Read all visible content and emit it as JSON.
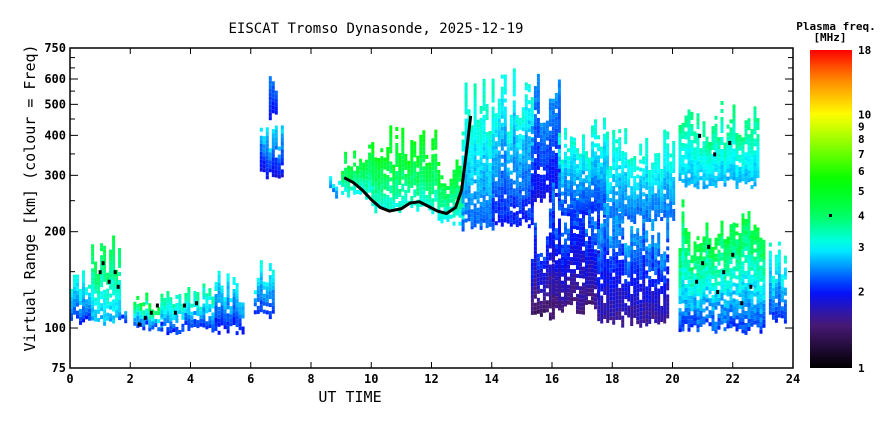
{
  "chart_data": {
    "type": "heatmap",
    "title": "EISCAT Tromso Dynasonde, 2025-12-19",
    "xlabel": "UT TIME",
    "ylabel": "Virtual Range [km] (colour = Freq)",
    "xlim": [
      0,
      24
    ],
    "ylim": [
      75,
      750
    ],
    "yscale": "log",
    "x_ticks": [
      "0",
      "2",
      "4",
      "6",
      "8",
      "10",
      "12",
      "14",
      "16",
      "18",
      "20",
      "22",
      "24"
    ],
    "x_tick_values": [
      0,
      2,
      4,
      6,
      8,
      10,
      12,
      14,
      16,
      18,
      20,
      22,
      24
    ],
    "y_ticks": [
      "75",
      "100",
      "200",
      "300",
      "400",
      "500",
      "600",
      "750"
    ],
    "y_tick_values": [
      75,
      100,
      200,
      300,
      400,
      500,
      600,
      750
    ],
    "y_minor_ticks": [
      150,
      250,
      350,
      450,
      550,
      650,
      700
    ],
    "colorbar": {
      "label_line1": "Plasma freq.",
      "label_line2": "[MHz]",
      "range": [
        1,
        18
      ],
      "scale": "log",
      "ticks": [
        "1",
        "2",
        "3",
        "4",
        "5",
        "6",
        "7",
        "8",
        "9",
        "10",
        "18"
      ],
      "tick_values": [
        1,
        2,
        3,
        4,
        5,
        6,
        7,
        8,
        9,
        10,
        18
      ],
      "colors": [
        "#000000",
        "#4a1a7a",
        "#0010ff",
        "#00ffff",
        "#00ff60",
        "#00ff00",
        "#ffff00",
        "#ff8000",
        "#ff0000"
      ],
      "color_stops_mhz": [
        1,
        1.5,
        2,
        3,
        4,
        5.5,
        10,
        14,
        18
      ]
    },
    "echo_regions_note": "t_start, t_end (UT h), range_low, range_high (km), freq_low, freq_high (MHz)",
    "echo_regions": [
      [
        0.0,
        0.7,
        100,
        150,
        2.0,
        3.5
      ],
      [
        0.7,
        1.6,
        100,
        195,
        2.5,
        4.5
      ],
      [
        1.6,
        1.8,
        100,
        120,
        2.0,
        3.0
      ],
      [
        2.1,
        3.0,
        95,
        130,
        2.0,
        5.0
      ],
      [
        3.0,
        4.8,
        95,
        140,
        2.0,
        4.0
      ],
      [
        4.8,
        5.7,
        95,
        150,
        1.9,
        3.2
      ],
      [
        6.1,
        6.7,
        105,
        160,
        2.0,
        3.3
      ],
      [
        6.3,
        7.0,
        290,
        440,
        1.8,
        3.0
      ],
      [
        6.6,
        6.8,
        440,
        640,
        1.9,
        2.5
      ],
      [
        8.6,
        8.9,
        250,
        300,
        2.3,
        3.2
      ],
      [
        9.0,
        10.0,
        250,
        380,
        3.0,
        5.0
      ],
      [
        10.0,
        12.2,
        225,
        420,
        3.0,
        5.5
      ],
      [
        12.2,
        13.0,
        205,
        330,
        2.8,
        5.0
      ],
      [
        13.0,
        14.0,
        200,
        600,
        2.2,
        3.6
      ],
      [
        14.0,
        15.3,
        205,
        640,
        1.9,
        3.4
      ],
      [
        15.3,
        16.0,
        105,
        230,
        1.3,
        2.4
      ],
      [
        15.3,
        16.2,
        240,
        640,
        1.8,
        2.6
      ],
      [
        16.0,
        17.5,
        110,
        300,
        1.4,
        2.6
      ],
      [
        16.2,
        17.8,
        220,
        450,
        2.0,
        3.5
      ],
      [
        17.8,
        20.0,
        210,
        420,
        2.2,
        3.5
      ],
      [
        17.5,
        19.8,
        100,
        250,
        1.5,
        2.8
      ],
      [
        20.2,
        23.0,
        95,
        250,
        2.0,
        5.0
      ],
      [
        20.2,
        22.8,
        270,
        500,
        2.5,
        4.0
      ],
      [
        23.2,
        23.7,
        100,
        190,
        2.0,
        3.5
      ]
    ],
    "trace_hF": {
      "t": [
        9.1,
        9.4,
        9.7,
        10.0,
        10.3,
        10.6,
        11.0,
        11.3,
        11.6,
        11.9,
        12.2,
        12.5,
        12.8,
        13.0,
        13.1,
        13.2,
        13.3
      ],
      "h": [
        295,
        285,
        270,
        252,
        238,
        232,
        236,
        246,
        248,
        240,
        232,
        228,
        238,
        270,
        320,
        380,
        460
      ]
    },
    "trace_dots": {
      "t": [
        1.0,
        1.1,
        1.3,
        1.5,
        1.6,
        2.3,
        2.5,
        2.7,
        2.9,
        3.5,
        3.8,
        4.2,
        20.8,
        21.0,
        21.2,
        21.5,
        21.7,
        22.0,
        22.3,
        22.6,
        20.9,
        21.4,
        21.9
      ],
      "h": [
        150,
        160,
        140,
        150,
        135,
        103,
        108,
        112,
        118,
        112,
        118,
        120,
        140,
        160,
        180,
        130,
        150,
        170,
        120,
        135,
        400,
        350,
        380
      ]
    }
  }
}
